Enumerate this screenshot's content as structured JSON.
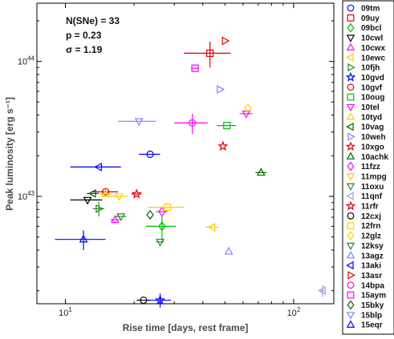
{
  "chart_data": {
    "type": "scatter",
    "xlabel": "Rise time [days, rest frame]",
    "ylabel": "Peak luminosity [erg s⁻¹]",
    "xscale": "log",
    "yscale": "log",
    "xlim": [
      7.5,
      150
    ],
    "ylim": [
      1.6e+42,
      2.7e+44
    ],
    "x_ticks": [
      {
        "value": 10,
        "base": "10",
        "exp": "1"
      },
      {
        "value": 100,
        "base": "10",
        "exp": "2"
      }
    ],
    "y_ticks": [
      {
        "value": 1e+43,
        "base": "10",
        "exp": "43"
      },
      {
        "value": 1e+44,
        "base": "10",
        "exp": "44"
      }
    ],
    "annotations": [
      {
        "text": "N(SNe) = 33",
        "part": "n"
      },
      {
        "text": "p = 0.23",
        "part": "p"
      },
      {
        "text": "σ = 1.19",
        "part": "sigma"
      }
    ],
    "legend_position": "right",
    "grid": false,
    "series": [
      {
        "name": "09tm",
        "marker": "circle",
        "color": "#0000ff",
        "x": 23.5,
        "y": 2.05e+43,
        "xerr": 2.5,
        "yerr": 0
      },
      {
        "name": "09uy",
        "marker": "square",
        "color": "#e00000",
        "x": 43,
        "y": 1.15e+44,
        "xerr": 10,
        "yerr": 2.5e+43
      },
      {
        "name": "09bcl",
        "marker": "diamond",
        "color": "#00c000",
        "x": 26.5,
        "y": 6e+42,
        "xerr": 4,
        "yerr": 1.3e+42
      },
      {
        "name": "10cwl",
        "marker": "triangle-down",
        "color": "#000000",
        "x": 12.5,
        "y": 9.4e+42,
        "xerr": 2.0,
        "yerr": 0
      },
      {
        "name": "10cwx",
        "marker": "triangle-up",
        "color": "#ff00ff",
        "x": 16.5,
        "y": 6.7e+42,
        "xerr": 0.7,
        "yerr": 0
      },
      {
        "name": "10ewc",
        "marker": "triangle-left",
        "color": "#ffcc00",
        "x": 44,
        "y": 5.9e+42,
        "xerr": 3,
        "yerr": 0
      },
      {
        "name": "10fjh",
        "marker": "triangle-right",
        "color": "#228b22",
        "x": 14,
        "y": 8.1e+42,
        "xerr": 0.8,
        "yerr": 1e+42
      },
      {
        "name": "10gvd",
        "marker": "star",
        "color": "#0000ff",
        "x": 26,
        "y": 1.7e+42,
        "xerr": 3,
        "yerr": 2e+41
      },
      {
        "name": "10gvf",
        "marker": "circle",
        "color": "#e00000",
        "x": 15,
        "y": 1.08e+43,
        "xerr": 2.0,
        "yerr": 0
      },
      {
        "name": "10oug",
        "marker": "square",
        "color": "#00c000",
        "x": 51,
        "y": 3.35e+43,
        "xerr": 5,
        "yerr": 0
      },
      {
        "name": "10tel",
        "marker": "triangle-down",
        "color": "#ff00ff",
        "x": 62,
        "y": 4.1e+43,
        "xerr": 4,
        "yerr": 0
      },
      {
        "name": "10tyd",
        "marker": "triangle-up",
        "color": "#ffcc00",
        "x": 15,
        "y": 1.04e+43,
        "xerr": 0.8,
        "yerr": 0
      },
      {
        "name": "10vag",
        "marker": "triangle-left",
        "color": "#006400",
        "x": 13.2,
        "y": 1.05e+43,
        "xerr": 0.8,
        "yerr": 0
      },
      {
        "name": "10weh",
        "marker": "triangle-right",
        "color": "#8080ff",
        "x": 47.5,
        "y": 6.2e+43,
        "xerr": 0,
        "yerr": 0
      },
      {
        "name": "10xgo",
        "marker": "star",
        "color": "#e00000",
        "x": 49,
        "y": 2.35e+43,
        "xerr": 0,
        "yerr": 0
      },
      {
        "name": "10achk",
        "marker": "triangle-up",
        "color": "#006400",
        "x": 72,
        "y": 1.5e+43,
        "xerr": 4,
        "yerr": 0
      },
      {
        "name": "11fzz",
        "marker": "diamond",
        "color": "#ff00ff",
        "x": 26.5,
        "y": 7.7e+42,
        "xerr": 1.5,
        "yerr": 0
      },
      {
        "name": "11mpg",
        "marker": "triangle-down",
        "color": "#ffcc00",
        "x": 17.2,
        "y": 1e+43,
        "xerr": 1.5,
        "yerr": 0
      },
      {
        "name": "11oxu",
        "marker": "triangle-down",
        "color": "#228b22",
        "x": 26,
        "y": 4.6e+42,
        "xerr": 1.0,
        "yerr": 0
      },
      {
        "name": "11qnf",
        "marker": "triangle-left",
        "color": "#9aa0e0",
        "x": 134,
        "y": 2e+42,
        "xerr": 3,
        "yerr": 2e+41
      },
      {
        "name": "11rfr",
        "marker": "star",
        "color": "#e00000",
        "x": 20.5,
        "y": 1.04e+43,
        "xerr": 1.0,
        "yerr": 0
      },
      {
        "name": "12cxj",
        "marker": "circle",
        "color": "#000000",
        "x": 22,
        "y": 1.7e+42,
        "xerr": 1.5,
        "yerr": 0
      },
      {
        "name": "12frn",
        "marker": "square",
        "color": "#ffcc00",
        "x": 28,
        "y": 8.3e+42,
        "xerr": 5,
        "yerr": 0
      },
      {
        "name": "12glz",
        "marker": "diamond",
        "color": "#ffcc00",
        "x": 63,
        "y": 4.5e+43,
        "xerr": 0,
        "yerr": 0
      },
      {
        "name": "12ksy",
        "marker": "triangle-down",
        "color": "#228b22",
        "x": 17.5,
        "y": 7.1e+42,
        "xerr": 1.0,
        "yerr": 0
      },
      {
        "name": "13agz",
        "marker": "triangle-up",
        "color": "#8080ff",
        "x": 52,
        "y": 3.9e+42,
        "xerr": 0,
        "yerr": 0
      },
      {
        "name": "13aki",
        "marker": "triangle-left",
        "color": "#0000ff",
        "x": 14,
        "y": 1.65e+43,
        "xerr": 3.5,
        "yerr": 0
      },
      {
        "name": "13asr",
        "marker": "triangle-right",
        "color": "#e00000",
        "x": 50,
        "y": 1.42e+44,
        "xerr": 0,
        "yerr": 0
      },
      {
        "name": "14bpa",
        "marker": "circle",
        "color": "#ff00ff",
        "x": 36,
        "y": 3.5e+43,
        "xerr": 6,
        "yerr": 6e+42
      },
      {
        "name": "15aym",
        "marker": "square",
        "color": "#ff00ff",
        "x": 37,
        "y": 8.9e+43,
        "xerr": 1.5,
        "yerr": 0
      },
      {
        "name": "15bky",
        "marker": "diamond",
        "color": "#006400",
        "x": 23.5,
        "y": 7.3e+42,
        "xerr": 0,
        "yerr": 0
      },
      {
        "name": "15blp",
        "marker": "triangle-down",
        "color": "#8080ff",
        "x": 21,
        "y": 3.6e+43,
        "xerr": 4,
        "yerr": 0
      },
      {
        "name": "15eqr",
        "marker": "triangle-up",
        "color": "#0000ff",
        "x": 12,
        "y": 4.8e+42,
        "xerr": 3,
        "yerr": 8e+41
      }
    ]
  }
}
